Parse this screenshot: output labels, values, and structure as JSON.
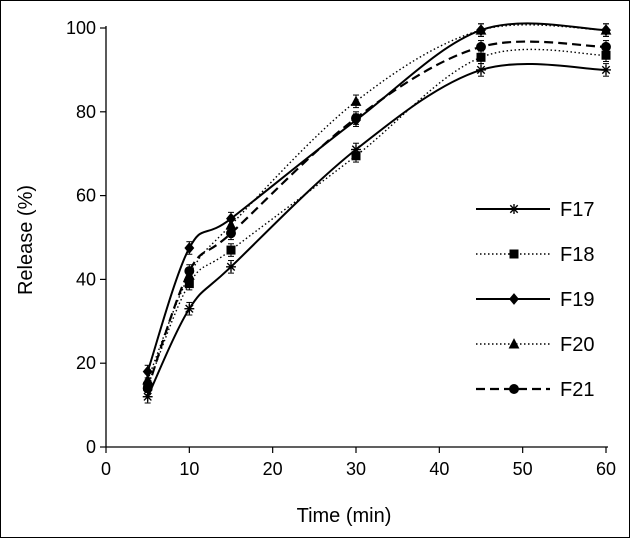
{
  "chart_data": {
    "type": "line",
    "title": "",
    "xlabel": "Time (min)",
    "ylabel": "Release (%)",
    "xlim": [
      0,
      60
    ],
    "ylim": [
      0,
      100
    ],
    "xticks": [
      0,
      10,
      20,
      30,
      40,
      50,
      60
    ],
    "yticks": [
      0,
      20,
      40,
      60,
      80,
      100
    ],
    "legend_position": "right",
    "x": [
      5,
      10,
      15,
      30,
      45,
      60
    ],
    "series": [
      {
        "name": "F17",
        "marker": "asterisk",
        "line": "solid",
        "values": [
          12,
          33,
          43,
          71,
          90,
          90
        ],
        "errors": [
          1.5,
          1.5,
          1.5,
          1.5,
          1.5,
          1.5
        ]
      },
      {
        "name": "F18",
        "marker": "square",
        "line": "dotted",
        "values": [
          14.5,
          39,
          47,
          69.5,
          93,
          93.5
        ],
        "errors": [
          1.5,
          1.5,
          1.5,
          1.5,
          1.5,
          1.5
        ]
      },
      {
        "name": "F19",
        "marker": "diamond",
        "line": "solid",
        "values": [
          18,
          47.5,
          54.5,
          78,
          99.5,
          99.5
        ],
        "errors": [
          1.5,
          1.5,
          1.5,
          1.5,
          1.5,
          1.5
        ]
      },
      {
        "name": "F20",
        "marker": "triangle",
        "line": "dotted",
        "values": [
          16,
          41,
          53,
          82.5,
          99.5,
          99.5
        ],
        "errors": [
          1.5,
          1.5,
          1.5,
          1.5,
          1.5,
          1.5
        ]
      },
      {
        "name": "F21",
        "marker": "circle",
        "line": "dashed",
        "values": [
          14,
          42,
          51,
          78.5,
          95.5,
          95.5
        ],
        "errors": [
          1.5,
          1.5,
          1.5,
          1.5,
          1.5,
          1.5
        ]
      }
    ],
    "colors": {
      "line": "#000000",
      "background": "#ffffff"
    }
  }
}
